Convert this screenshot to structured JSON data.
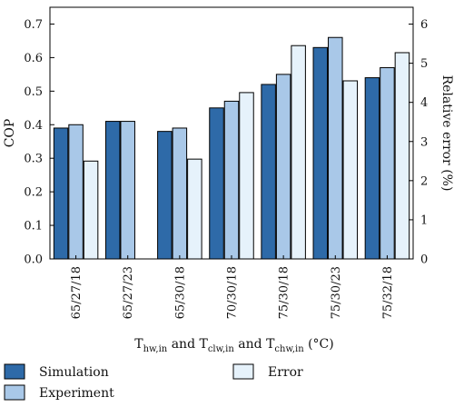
{
  "chart_data": {
    "type": "bar",
    "categories": [
      "65/27/18",
      "65/27/23",
      "65/30/18",
      "70/30/18",
      "75/30/18",
      "75/30/23",
      "75/32/18"
    ],
    "series": [
      {
        "name": "Simulation",
        "axis": "left",
        "color": "#2e6aa8",
        "values": [
          0.39,
          0.41,
          0.38,
          0.45,
          0.52,
          0.63,
          0.54
        ]
      },
      {
        "name": "Experiment",
        "axis": "left",
        "color": "#a9c8e8",
        "values": [
          0.4,
          0.41,
          0.39,
          0.47,
          0.55,
          0.66,
          0.57
        ]
      },
      {
        "name": "Error",
        "axis": "right",
        "color": "#e6f2fb",
        "values": [
          2.5,
          null,
          2.55,
          4.25,
          5.45,
          4.55,
          5.27
        ]
      }
    ],
    "ylabel": "COP",
    "y2label": "Relative error (%)",
    "xlabel_parts": {
      "t1": "T",
      "s1": "hw,in",
      "mid1": " and ",
      "t2": "T",
      "s2": "clw,in",
      "mid2": " and ",
      "t3": "T",
      "s3": "chw,in",
      "unit": " (°C)"
    },
    "ylim": [
      0,
      0.75
    ],
    "yticks": [
      "0.0",
      "0.1",
      "0.2",
      "0.3",
      "0.4",
      "0.5",
      "0.6",
      "0.7"
    ],
    "y2lim": [
      0,
      6.43
    ],
    "y2ticks": [
      "0",
      "1",
      "2",
      "3",
      "4",
      "5",
      "6"
    ],
    "legend": {
      "placement": "bottom"
    },
    "grid": false
  }
}
